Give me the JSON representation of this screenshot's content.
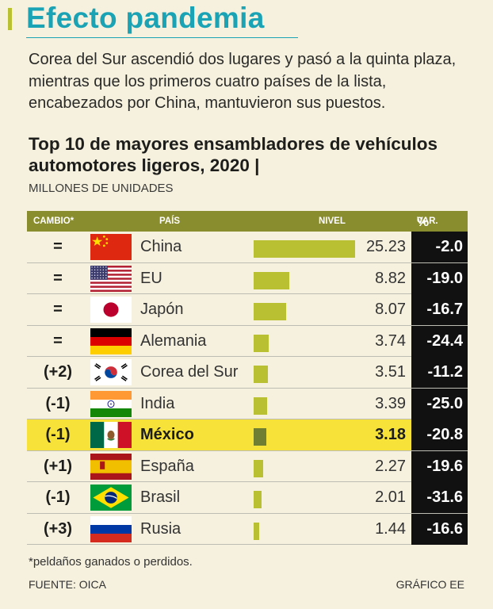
{
  "title": "Efecto pandemia",
  "intro": "Corea del Sur ascendió dos lugares y pasó a la quinta plaza, mientras que los primeros cuatro países de la lista, encabezados por China, mantuvieron sus puestos.",
  "chart_title": "Top 10 de mayores ensambladores de vehículos automotores ligeros, 2020 |",
  "subtitle": "MILLONES DE UNIDADES",
  "header": {
    "cambio": "CAMBIO*",
    "pais": "PAÍS",
    "nivel": "NIVEL",
    "var": "VAR.",
    "pct": "%"
  },
  "colors": {
    "accent": "#1aa3b5",
    "bar": "#b9c032",
    "bar_highlight": "#6f7e32",
    "highlight": "#f7e23a",
    "header": "#8a8d2e"
  },
  "chart_data": {
    "type": "table",
    "title": "Top 10 de mayores ensambladores de vehículos automotores ligeros, 2020",
    "unit": "millones de unidades",
    "bar_max": 25.23,
    "rows": [
      {
        "cambio": "=",
        "pais": "China",
        "flag": "china-flag",
        "nivel": "25.23",
        "value": 25.23,
        "var": "-2.0"
      },
      {
        "cambio": "=",
        "pais": "EU",
        "flag": "usa-flag",
        "nivel": "8.82",
        "value": 8.82,
        "var": "-19.0"
      },
      {
        "cambio": "=",
        "pais": "Japón",
        "flag": "japan-flag",
        "nivel": "8.07",
        "value": 8.07,
        "var": "-16.7"
      },
      {
        "cambio": "=",
        "pais": "Alemania",
        "flag": "germany-flag",
        "nivel": "3.74",
        "value": 3.74,
        "var": "-24.4"
      },
      {
        "cambio": "(+2)",
        "pais": "Corea del Sur",
        "flag": "south-korea-flag",
        "nivel": "3.51",
        "value": 3.51,
        "var": "-11.2"
      },
      {
        "cambio": "(-1)",
        "pais": "India",
        "flag": "india-flag",
        "nivel": "3.39",
        "value": 3.39,
        "var": "-25.0"
      },
      {
        "cambio": "(-1)",
        "pais": "México",
        "flag": "mexico-flag",
        "nivel": "3.18",
        "value": 3.18,
        "var": "-20.8",
        "highlight": true
      },
      {
        "cambio": "(+1)",
        "pais": "España",
        "flag": "spain-flag",
        "nivel": "2.27",
        "value": 2.27,
        "var": "-19.6"
      },
      {
        "cambio": "(-1)",
        "pais": "Brasil",
        "flag": "brazil-flag",
        "nivel": "2.01",
        "value": 2.01,
        "var": "-31.6"
      },
      {
        "cambio": "(+3)",
        "pais": "Rusia",
        "flag": "russia-flag",
        "nivel": "1.44",
        "value": 1.44,
        "var": "-16.6"
      }
    ]
  },
  "note": "*peldaños ganados o perdidos.",
  "source": "FUENTE: OICA",
  "credit": "GRÁFICO EE"
}
